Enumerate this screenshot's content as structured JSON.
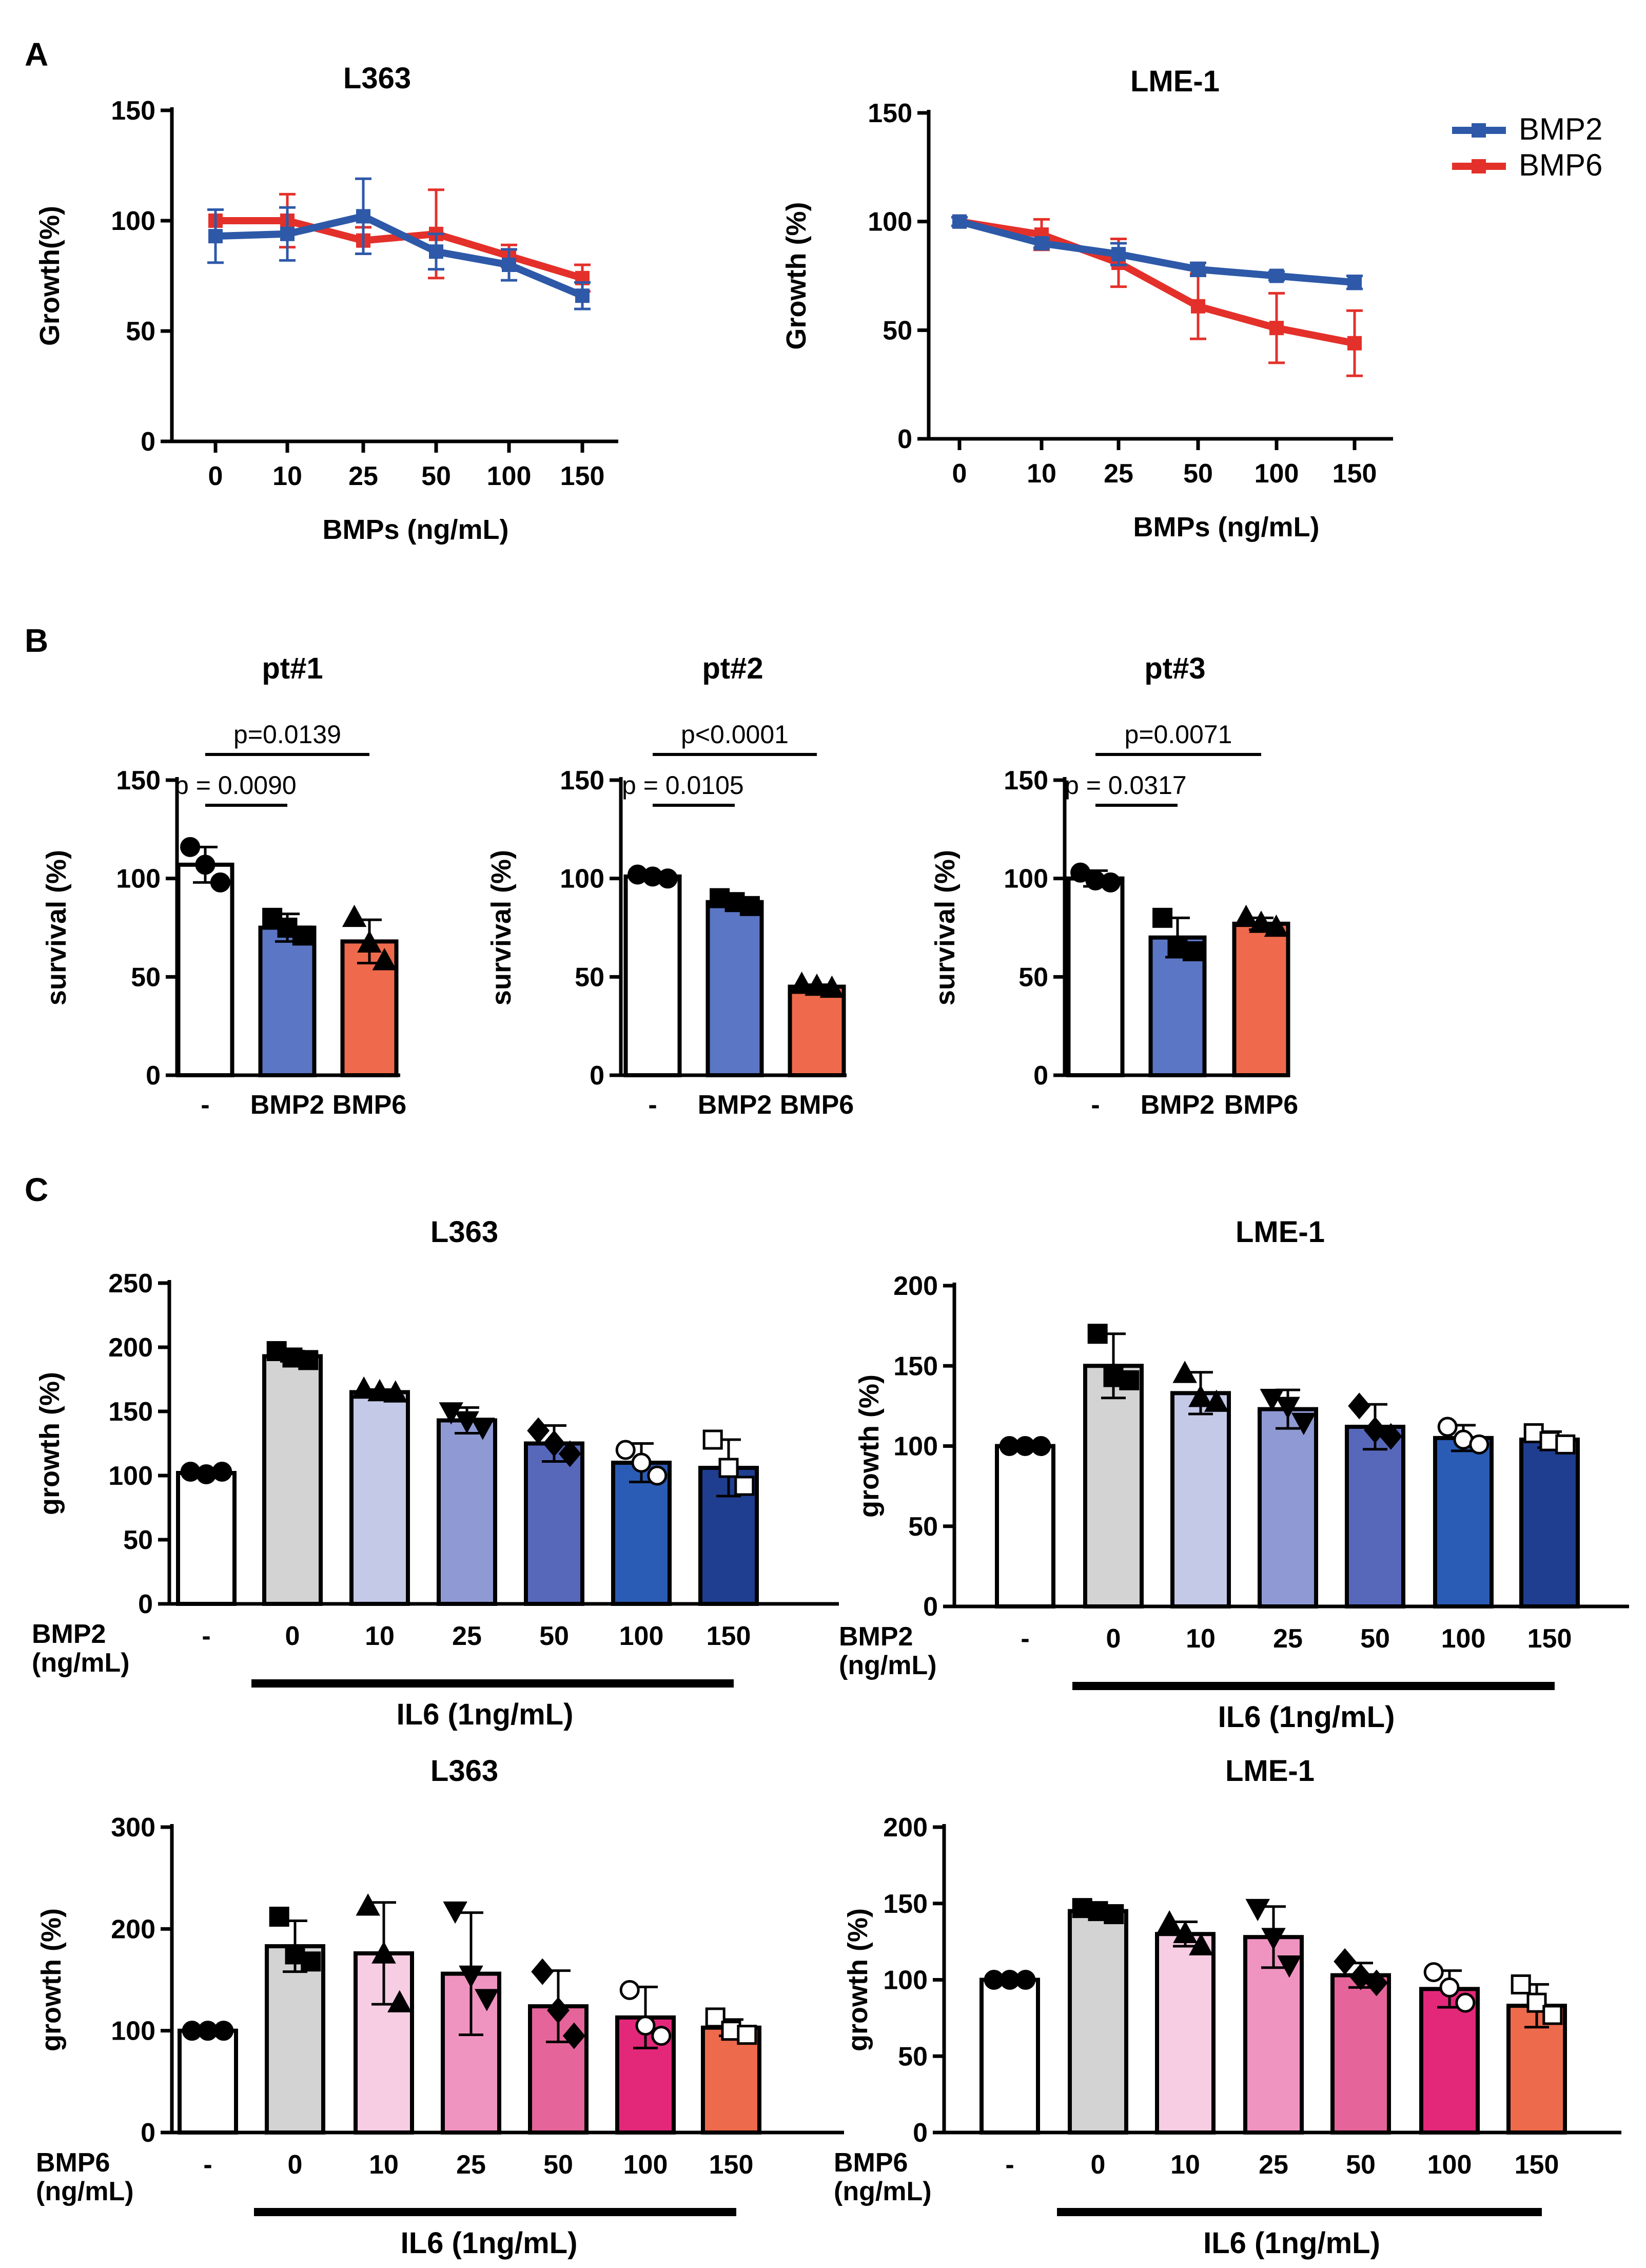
{
  "panel_labels": [
    "A",
    "B",
    "C"
  ],
  "colors": {
    "bmp2_line": "#2e59a8",
    "bmp6_line": "#e4302a",
    "il6_control": "#d3d3d3",
    "bmp2_bars": [
      "#c4c9e8",
      "#8f9ad4",
      "#5768bb",
      "#3a4fa9",
      "#2b5cb5",
      "#1f3e90"
    ],
    "bmp6_bars": [
      "#f6cde3",
      "#ef94c0",
      "#e5649a",
      "#e3287a",
      "#ee6a4c"
    ],
    "survival_bmp2": "#5b76c4",
    "survival_bmp6": "#ef6a4c"
  },
  "chart_data": [
    {
      "id": "A1",
      "type": "line",
      "title": "L363",
      "xlabel": "BMPs (ng/mL)",
      "ylabel": "Growth(%)",
      "ylim": [
        0,
        150
      ],
      "yticks": [
        "0",
        "50",
        "100",
        "150"
      ],
      "categories": [
        "0",
        "10",
        "25",
        "50",
        "100",
        "150"
      ],
      "series": [
        {
          "name": "BMP6",
          "color": "#e4302a",
          "values": [
            100,
            100,
            91,
            94,
            84,
            74
          ],
          "errors": [
            0,
            12,
            6,
            20,
            5,
            6
          ]
        },
        {
          "name": "BMP2",
          "color": "#2e59a8",
          "values": [
            93,
            94,
            102,
            86,
            80,
            66
          ],
          "errors": [
            12,
            12,
            17,
            8,
            7,
            6
          ]
        }
      ]
    },
    {
      "id": "A2",
      "type": "line",
      "title": "LME-1",
      "xlabel": "BMPs (ng/mL)",
      "ylabel": "Growth (%)",
      "ylim": [
        0,
        150
      ],
      "yticks": [
        "0",
        "50",
        "100",
        "150"
      ],
      "categories": [
        "0",
        "10",
        "25",
        "50",
        "100",
        "150"
      ],
      "legend": [
        "BMP2",
        "BMP6"
      ],
      "legend_position": "top-right",
      "series": [
        {
          "name": "BMP6",
          "color": "#e4302a",
          "values": [
            100,
            94,
            81,
            61,
            51,
            44
          ],
          "errors": [
            2,
            7,
            11,
            15,
            16,
            15
          ]
        },
        {
          "name": "BMP2",
          "color": "#2e59a8",
          "values": [
            100,
            90,
            85,
            78,
            75,
            72
          ],
          "errors": [
            2,
            2,
            5,
            3,
            2,
            3
          ]
        }
      ]
    },
    {
      "id": "B1",
      "type": "bar",
      "title": "pt#1",
      "ylabel": "survival (%)",
      "ylim": [
        0,
        150
      ],
      "yticks": [
        "0",
        "50",
        "100",
        "150"
      ],
      "categories": [
        "-",
        "BMP2",
        "BMP6"
      ],
      "values": [
        107,
        75,
        68
      ],
      "errors": [
        9,
        7,
        11
      ],
      "points": [
        [
          116,
          107,
          98
        ],
        [
          80,
          75,
          71
        ],
        [
          80,
          67,
          58
        ]
      ],
      "marker_shapes": [
        "circle",
        "square",
        "triangle-up"
      ],
      "comparisons": [
        {
          "label": "p = 0.0090",
          "from": 0,
          "to": 1,
          "level": 1
        },
        {
          "label": "p=0.0139",
          "from": 0,
          "to": 2,
          "level": 2
        }
      ]
    },
    {
      "id": "B2",
      "type": "bar",
      "title": "pt#2",
      "ylabel": "survival (%)",
      "ylim": [
        0,
        150
      ],
      "yticks": [
        "0",
        "50",
        "100",
        "150"
      ],
      "categories": [
        "-",
        "BMP2",
        "BMP6"
      ],
      "values": [
        101,
        88,
        45
      ],
      "errors": [
        2,
        2,
        1
      ],
      "points": [
        [
          102,
          101,
          100
        ],
        [
          90,
          88,
          86
        ],
        [
          46,
          45,
          44
        ]
      ],
      "marker_shapes": [
        "circle",
        "square",
        "triangle-up"
      ],
      "comparisons": [
        {
          "label": "p = 0.0105",
          "from": 0,
          "to": 1,
          "level": 1
        },
        {
          "label": "p<0.0001",
          "from": 0,
          "to": 2,
          "level": 2
        }
      ]
    },
    {
      "id": "B3",
      "type": "bar",
      "title": "pt#3",
      "ylabel": "survival (%)",
      "ylim": [
        0,
        150
      ],
      "yticks": [
        "0",
        "50",
        "100",
        "150"
      ],
      "categories": [
        "-",
        "BMP2",
        "BMP6"
      ],
      "values": [
        100,
        70,
        77
      ],
      "errors": [
        4,
        10,
        3
      ],
      "points": [
        [
          103,
          99,
          98
        ],
        [
          80,
          65,
          63
        ],
        [
          80,
          77,
          75
        ]
      ],
      "marker_shapes": [
        "circle",
        "square",
        "triangle-up"
      ],
      "comparisons": [
        {
          "label": "p = 0.0317",
          "from": 0,
          "to": 1,
          "level": 1
        },
        {
          "label": "p=0.0071",
          "from": 0,
          "to": 2,
          "level": 2
        }
      ]
    },
    {
      "id": "C1",
      "type": "bar",
      "title": "L363",
      "ylabel": "growth (%)",
      "ylim": [
        0,
        250
      ],
      "yticks": [
        "0",
        "50",
        "100",
        "150",
        "200",
        "250"
      ],
      "categories": [
        "-",
        "0",
        "10",
        "25",
        "50",
        "100",
        "150"
      ],
      "row_label": [
        "BMP2",
        "(ng/mL)"
      ],
      "treatment_label": "IL6 (1ng/mL)",
      "values": [
        102,
        193,
        165,
        143,
        125,
        110,
        106
      ],
      "errors": [
        2,
        4,
        2,
        10,
        14,
        15,
        22
      ],
      "points": [
        [
          103,
          101,
          103
        ],
        [
          197,
          192,
          190
        ],
        [
          167,
          165,
          164
        ],
        [
          150,
          143,
          138
        ],
        [
          135,
          125,
          117
        ],
        [
          120,
          110,
          100
        ],
        [
          128,
          106,
          92
        ]
      ],
      "marker_shapes": [
        "circle",
        "square",
        "triangle-up",
        "triangle-down",
        "diamond",
        "circle-open",
        "square-open"
      ],
      "bar_colors": [
        "#ffffff",
        "#d3d3d3",
        "#c4c9e8",
        "#8f9ad4",
        "#5768bb",
        "#2b5cb5",
        "#1f3e90"
      ]
    },
    {
      "id": "C2",
      "type": "bar",
      "title": "LME-1",
      "ylabel": "growth (%)",
      "ylim": [
        0,
        200
      ],
      "yticks": [
        "0",
        "50",
        "100",
        "150",
        "200"
      ],
      "categories": [
        "-",
        "0",
        "10",
        "25",
        "50",
        "100",
        "150"
      ],
      "row_label": [
        "BMP2",
        "(ng/mL)"
      ],
      "treatment_label": "IL6 (1ng/mL)",
      "values": [
        100,
        150,
        133,
        123,
        112,
        105,
        104
      ],
      "errors": [
        0,
        20,
        13,
        12,
        14,
        8,
        5
      ],
      "points": [
        [
          100,
          100,
          100
        ],
        [
          170,
          143,
          141
        ],
        [
          145,
          130,
          127
        ],
        [
          130,
          125,
          115
        ],
        [
          125,
          110,
          106
        ],
        [
          112,
          104,
          101
        ],
        [
          108,
          103,
          101
        ]
      ],
      "marker_shapes": [
        "circle",
        "square",
        "triangle-up",
        "triangle-down",
        "diamond",
        "circle-open",
        "square-open"
      ],
      "bar_colors": [
        "#ffffff",
        "#d3d3d3",
        "#c4c9e8",
        "#8f9ad4",
        "#5768bb",
        "#2b5cb5",
        "#1f3e90"
      ]
    },
    {
      "id": "C3",
      "type": "bar",
      "title": "L363",
      "ylabel": "growth (%)",
      "ylim": [
        0,
        300
      ],
      "yticks": [
        "0",
        "100",
        "200",
        "300"
      ],
      "categories": [
        "-",
        "0",
        "10",
        "25",
        "50",
        "100",
        "150"
      ],
      "row_label": [
        "BMP6",
        "(ng/mL)"
      ],
      "treatment_label": "IL6 (1ng/mL)",
      "values": [
        100,
        183,
        176,
        156,
        124,
        113,
        103
      ],
      "errors": [
        0,
        25,
        50,
        60,
        35,
        30,
        8
      ],
      "points": [
        [
          100,
          100,
          100
        ],
        [
          212,
          175,
          168
        ],
        [
          222,
          175,
          127
        ],
        [
          218,
          155,
          132
        ],
        [
          158,
          120,
          95
        ],
        [
          140,
          105,
          95
        ],
        [
          113,
          100,
          96
        ]
      ],
      "marker_shapes": [
        "circle",
        "square",
        "triangle-up",
        "triangle-down",
        "diamond",
        "circle-open",
        "square-open"
      ],
      "bar_colors": [
        "#ffffff",
        "#d3d3d3",
        "#f6cde3",
        "#ef94c0",
        "#e5649a",
        "#e3287a",
        "#ee6a4c"
      ]
    },
    {
      "id": "C4",
      "type": "bar",
      "title": "LME-1",
      "ylabel": "growth (%)",
      "ylim": [
        0,
        200
      ],
      "yticks": [
        "0",
        "50",
        "100",
        "150",
        "200"
      ],
      "categories": [
        "-",
        "0",
        "10",
        "25",
        "50",
        "100",
        "150"
      ],
      "row_label": [
        "BMP6",
        "(ng/mL)"
      ],
      "treatment_label": "IL6 (1ng/mL)",
      "values": [
        100,
        145,
        130,
        128,
        103,
        94,
        83
      ],
      "errors": [
        0,
        3,
        8,
        20,
        8,
        12,
        14
      ],
      "points": [
        [
          100,
          100,
          100
        ],
        [
          147,
          145,
          143
        ],
        [
          137,
          130,
          122
        ],
        [
          147,
          128,
          110
        ],
        [
          112,
          102,
          98
        ],
        [
          105,
          95,
          85
        ],
        [
          97,
          85,
          77
        ]
      ],
      "marker_shapes": [
        "circle",
        "square",
        "triangle-up",
        "triangle-down",
        "diamond",
        "circle-open",
        "square-open"
      ],
      "bar_colors": [
        "#ffffff",
        "#d3d3d3",
        "#f6cde3",
        "#ef94c0",
        "#e5649a",
        "#e3287a",
        "#ee6a4c"
      ]
    }
  ]
}
